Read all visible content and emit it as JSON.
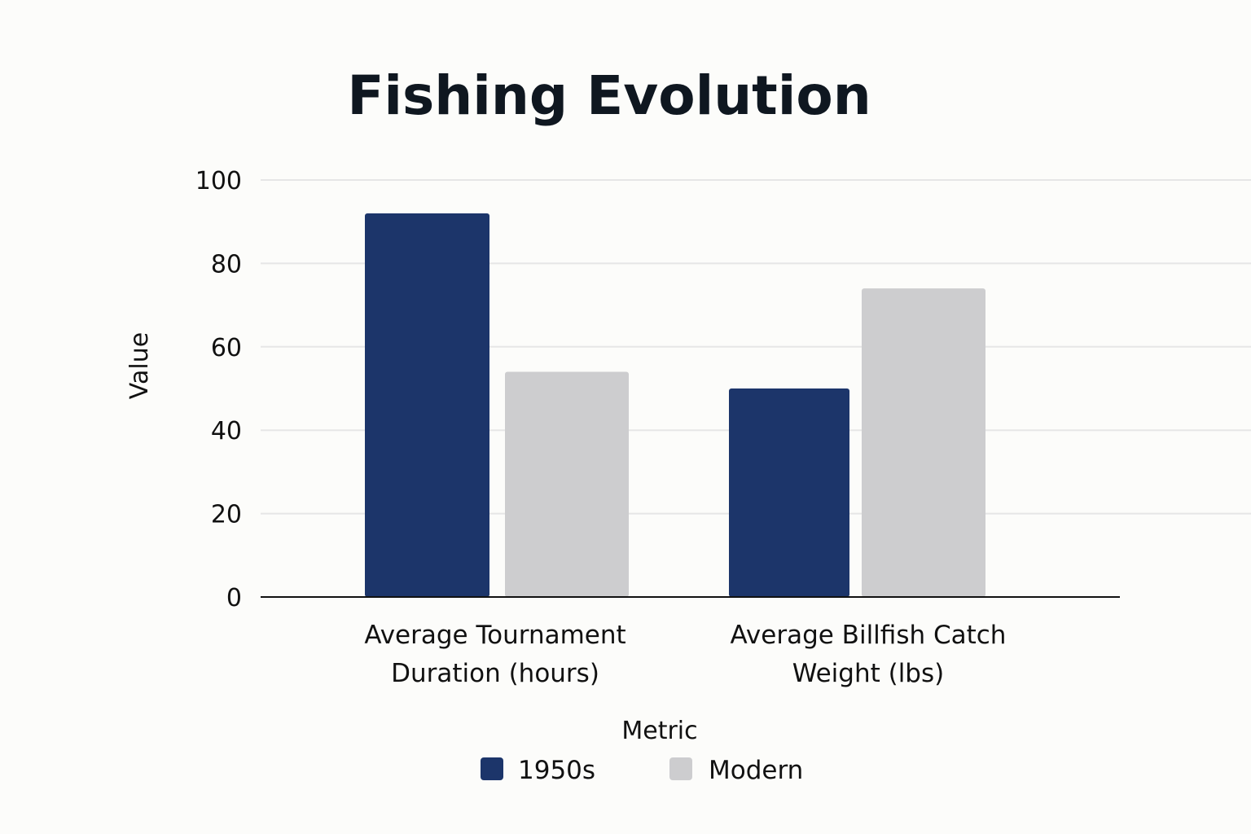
{
  "chart_data": {
    "type": "bar",
    "title": "Fishing Evolution",
    "xlabel": "",
    "ylabel": "Value",
    "ylim": [
      0,
      100
    ],
    "yticks": [
      0,
      20,
      40,
      60,
      80,
      100
    ],
    "grid": true,
    "categories": [
      [
        "Average Tournament",
        "Duration (hours)"
      ],
      [
        "Average Billfish Catch",
        "Weight (lbs)"
      ]
    ],
    "series": [
      {
        "name": "1950s",
        "values": [
          92,
          50
        ],
        "color": "#1c356a"
      },
      {
        "name": "Modern",
        "values": [
          54,
          74
        ],
        "color": "#cdcdcf"
      }
    ],
    "legend": {
      "title": "Metric",
      "position": "bottom-center"
    }
  }
}
